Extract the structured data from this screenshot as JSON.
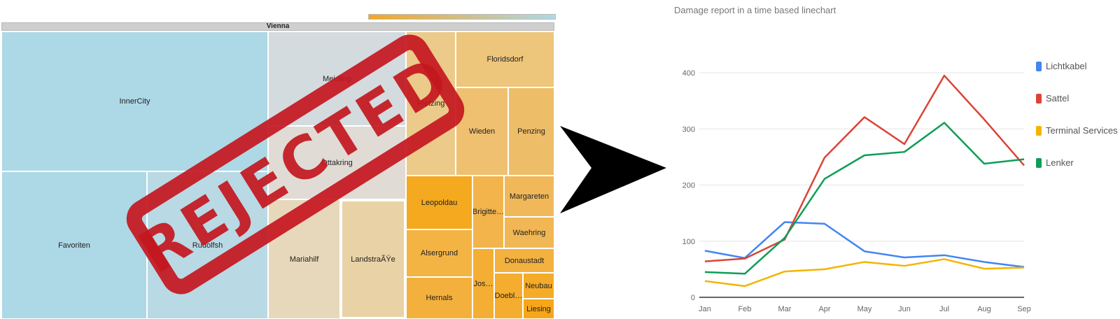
{
  "treemap": {
    "root": "Vienna",
    "cells": [
      {
        "label": "InnerCity",
        "color": "#add8e6"
      },
      {
        "label": "Favoriten",
        "color": "#add8e6"
      },
      {
        "label": "Rudolfsh",
        "color": "#b9d9e4"
      },
      {
        "label": "Meidling",
        "color": "#d3dbdf"
      },
      {
        "label": "Ottakring",
        "color": "#e1dbd5"
      },
      {
        "label": "Mariahilf",
        "color": "#e8d8bb"
      },
      {
        "label": "LandstraÃŸe",
        "color": "#e9d2a6"
      },
      {
        "label": "Hietzing",
        "color": "#ecca8a"
      },
      {
        "label": "Floridsdorf",
        "color": "#edc57b"
      },
      {
        "label": "Wieden",
        "color": "#eec070"
      },
      {
        "label": "Penzing",
        "color": "#eebd68"
      },
      {
        "label": "Leopoldau",
        "color": "#f4a91f"
      },
      {
        "label": "Brigitte…",
        "color": "#f2b44b"
      },
      {
        "label": "Margareten",
        "color": "#f1b85a"
      },
      {
        "label": "Waehring",
        "color": "#f1b755"
      },
      {
        "label": "Alsergrund",
        "color": "#f3b443"
      },
      {
        "label": "Jos…",
        "color": "#f3ae33"
      },
      {
        "label": "Donaustadt",
        "color": "#f3b140"
      },
      {
        "label": "Hernals",
        "color": "#f4b03d"
      },
      {
        "label": "Doebl…",
        "color": "#f4ad2f"
      },
      {
        "label": "Neubau",
        "color": "#f4ab28"
      },
      {
        "label": "Liesing",
        "color": "#f5a61a"
      }
    ],
    "scale_colors": [
      "#f5a623",
      "#add8e6"
    ],
    "stamp_text": "REJECTED",
    "stamp_color": "#c4171f"
  },
  "chart_data": {
    "type": "line",
    "title": "Damage report in a time based linechart",
    "categories": [
      "Jan",
      "Feb",
      "Mar",
      "Apr",
      "May",
      "Jun",
      "Jul",
      "Aug",
      "Sep"
    ],
    "yticks": [
      0,
      100,
      200,
      300,
      400
    ],
    "ylim": [
      0,
      420
    ],
    "grid": true,
    "legend_position": "right",
    "series": [
      {
        "name": "Lichtkabel",
        "color": "#4285f4",
        "values": [
          83,
          70,
          134,
          131,
          82,
          71,
          75,
          63,
          54
        ]
      },
      {
        "name": "Sattel",
        "color": "#db4437",
        "values": [
          64,
          69,
          103,
          249,
          321,
          273,
          395,
          317,
          235
        ]
      },
      {
        "name": "Terminal Services",
        "color": "#f4b400",
        "values": [
          29,
          20,
          46,
          50,
          63,
          56,
          68,
          51,
          53
        ]
      },
      {
        "name": "Lenker",
        "color": "#0f9d58",
        "values": [
          45,
          42,
          106,
          211,
          253,
          259,
          311,
          238,
          246
        ]
      }
    ]
  }
}
